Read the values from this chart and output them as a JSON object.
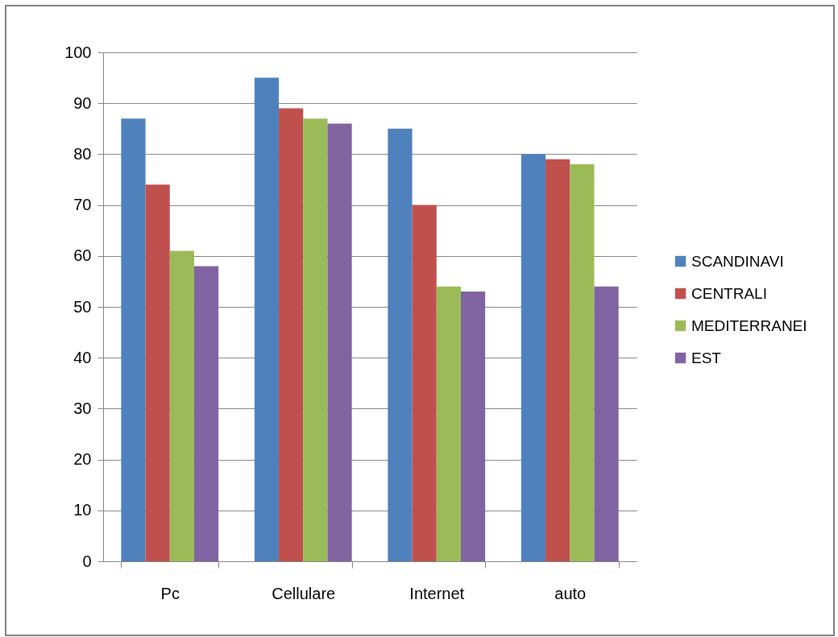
{
  "chart_data": {
    "type": "bar",
    "categories": [
      "Pc",
      "Cellulare",
      "Internet",
      "auto"
    ],
    "series": [
      {
        "name": "SCANDINAVI",
        "color": "#4f81bd",
        "values": [
          87,
          95,
          85,
          80
        ]
      },
      {
        "name": "CENTRALI",
        "color": "#c0504d",
        "values": [
          74,
          89,
          70,
          79
        ]
      },
      {
        "name": "MEDITERRANEI",
        "color": "#9bbb59",
        "values": [
          61,
          87,
          54,
          78
        ]
      },
      {
        "name": "EST",
        "color": "#8064a2",
        "values": [
          58,
          86,
          53,
          54
        ]
      }
    ],
    "ylim": [
      0,
      100
    ],
    "yticks": [
      0,
      10,
      20,
      30,
      40,
      50,
      60,
      70,
      80,
      90,
      100
    ],
    "grid": "y",
    "legend": "right"
  }
}
